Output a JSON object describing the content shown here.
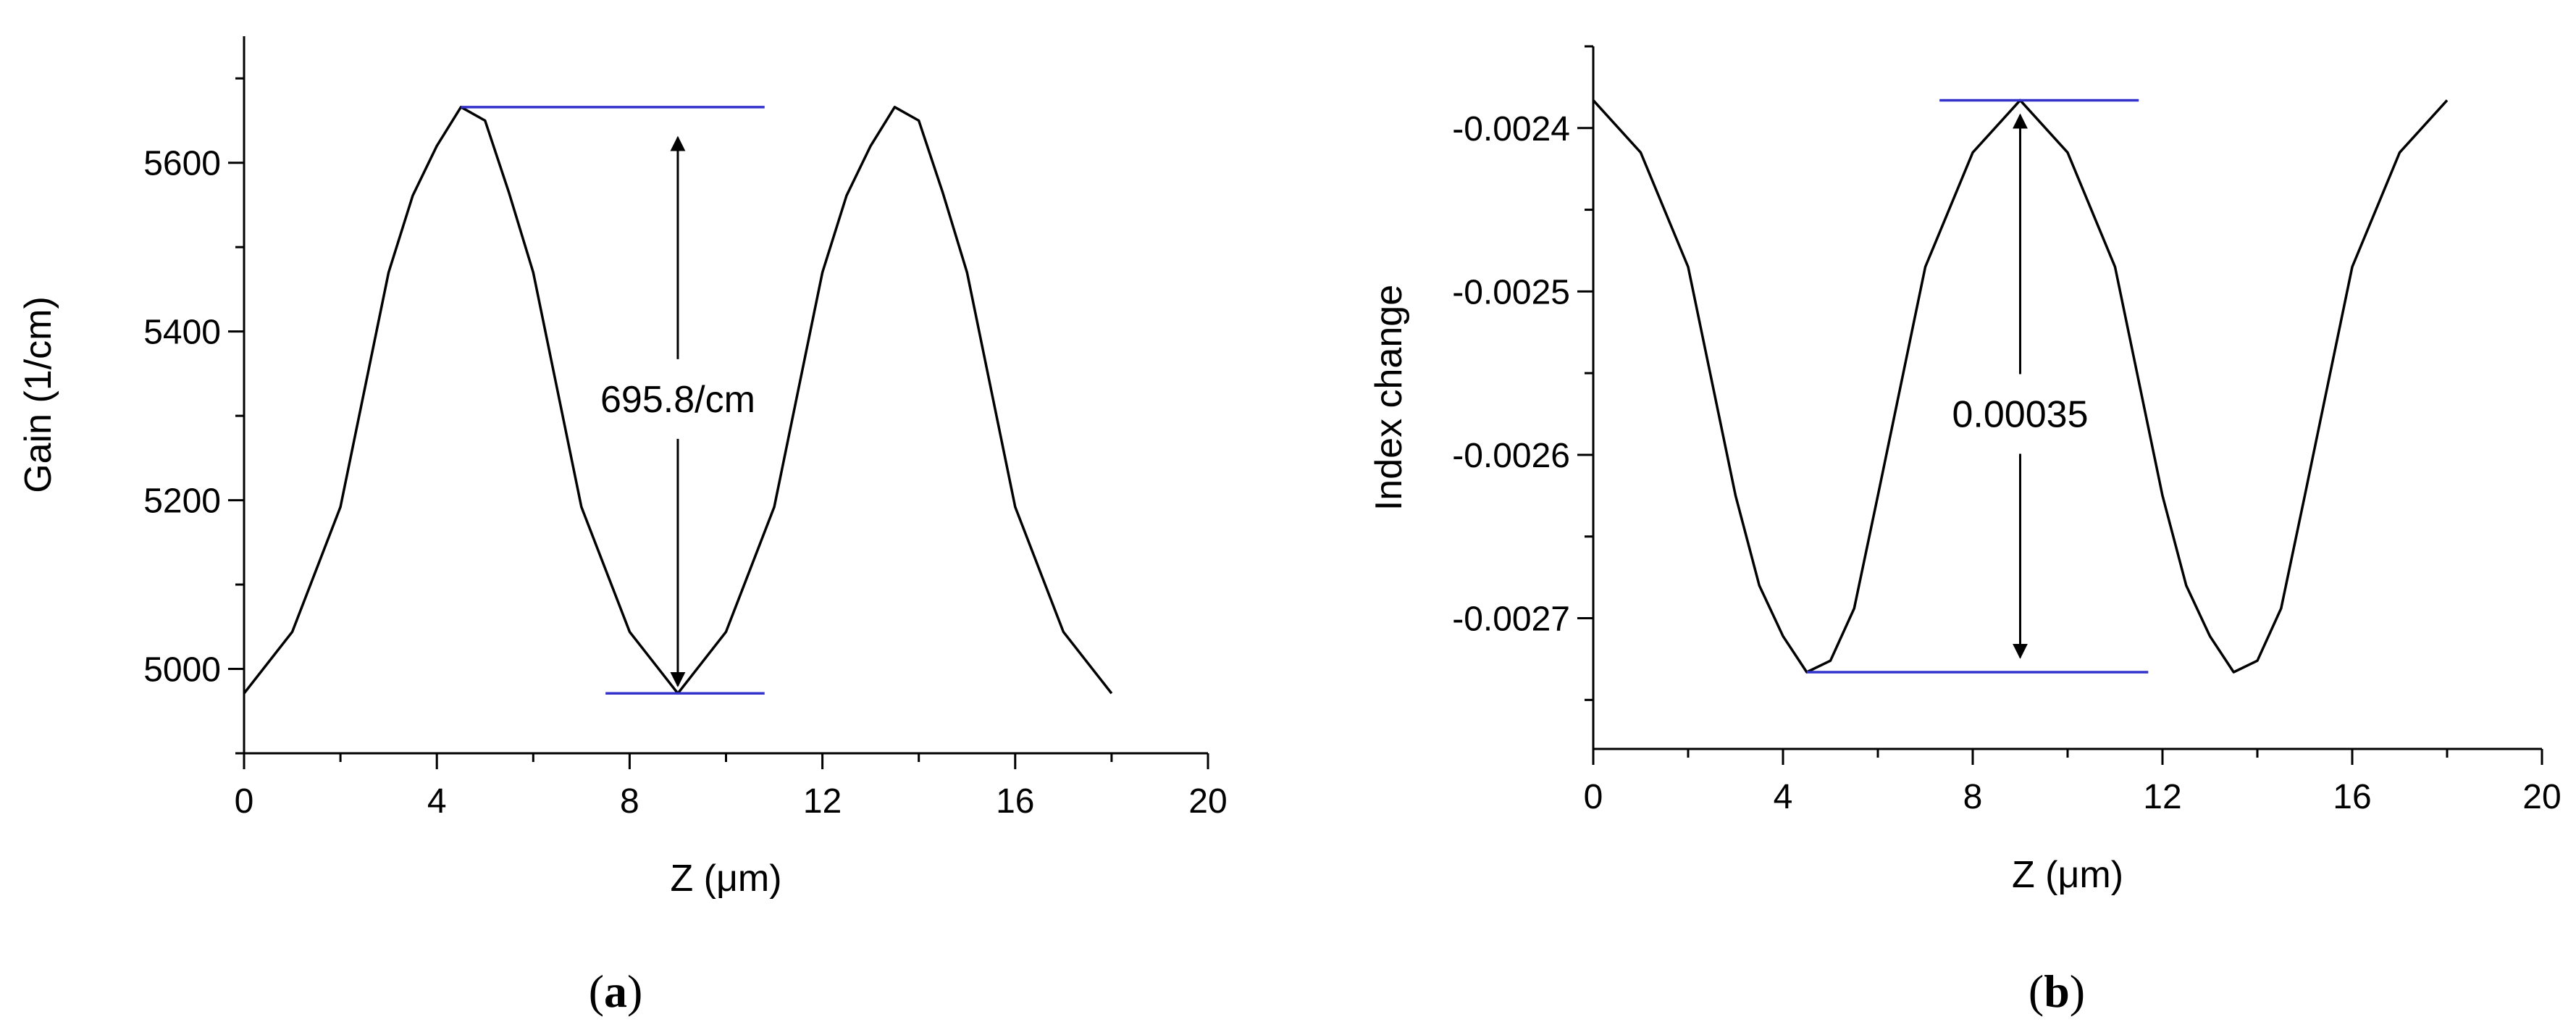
{
  "chart_data": [
    {
      "type": "line",
      "panel_label": "a",
      "xlabel": "Z (μm)",
      "ylabel": "Gain (1/cm)",
      "xlim": [
        0,
        20
      ],
      "ylim": [
        4900,
        5750
      ],
      "xticks": [
        0,
        4,
        8,
        12,
        16,
        20
      ],
      "yticks": [
        5000,
        5200,
        5400,
        5600
      ],
      "xtick_labels": [
        "0",
        "4",
        "8",
        "12",
        "16",
        "20"
      ],
      "ytick_labels": [
        "5000",
        "5200",
        "5400",
        "5600"
      ],
      "grid": false,
      "line_color": "#000000",
      "marker_color": "#3333cc",
      "series": [
        {
          "x": [
            0,
            1,
            2,
            3,
            3.5,
            4,
            4.5,
            5,
            5.5,
            6,
            7,
            8,
            9,
            10,
            11,
            12,
            12.5,
            13,
            13.5,
            14,
            14.5,
            15,
            16,
            17,
            18
          ],
          "y": [
            4971,
            5044,
            5192,
            5470,
            5561,
            5620,
            5666,
            5650,
            5564,
            5470,
            5192,
            5044,
            4971,
            5044,
            5192,
            5470,
            5561,
            5620,
            5666,
            5650,
            5564,
            5470,
            5192,
            5044,
            4971
          ]
        }
      ],
      "reference_lines": [
        {
          "x": [
            4.5,
            10.8
          ],
          "y": 5666
        },
        {
          "x": [
            7.5,
            10.8
          ],
          "y": 4971
        }
      ],
      "arrow": {
        "x": 9,
        "y": [
          5630,
          4980
        ]
      },
      "annotation": {
        "text": "695.8/cm",
        "x": 9,
        "y": 5320
      }
    },
    {
      "type": "line",
      "panel_label": "b",
      "xlabel": "Z (μm)",
      "ylabel": "Index change",
      "xlim": [
        0,
        20
      ],
      "ylim": [
        -0.00278,
        -0.00235
      ],
      "xticks": [
        0,
        4,
        8,
        12,
        16,
        20
      ],
      "yticks": [
        -0.0024,
        -0.0025,
        -0.0026,
        -0.0027
      ],
      "xtick_labels": [
        "0",
        "4",
        "8",
        "12",
        "16",
        "20"
      ],
      "ytick_labels": [
        "-0.0024",
        "-0.0025",
        "-0.0026",
        "-0.0027"
      ],
      "grid": false,
      "line_color": "#000000",
      "marker_color": "#3333cc",
      "series": [
        {
          "x": [
            0,
            1,
            2,
            3,
            3.5,
            4,
            4.5,
            5,
            5.5,
            6,
            7,
            8,
            9,
            10,
            11,
            12,
            12.5,
            13,
            13.5,
            14,
            14.5,
            15,
            16,
            17,
            18
          ],
          "y": [
            -0.002383,
            -0.002415,
            -0.002485,
            -0.002625,
            -0.00268,
            -0.002711,
            -0.002733,
            -0.002726,
            -0.002694,
            -0.002625,
            -0.002485,
            -0.002415,
            -0.002383,
            -0.002415,
            -0.002485,
            -0.002625,
            -0.00268,
            -0.002711,
            -0.002733,
            -0.002726,
            -0.002694,
            -0.002625,
            -0.002485,
            -0.002415,
            -0.002383
          ]
        }
      ],
      "reference_lines": [
        {
          "x": [
            7.3,
            11.5
          ],
          "y": -0.002383
        },
        {
          "x": [
            4.5,
            11.7
          ],
          "y": -0.002733
        }
      ],
      "arrow": {
        "x": 9,
        "y": [
          -0.002392,
          -0.002724
        ]
      },
      "annotation": {
        "text": "0.00035",
        "x": 9,
        "y": -0.002575
      }
    }
  ]
}
